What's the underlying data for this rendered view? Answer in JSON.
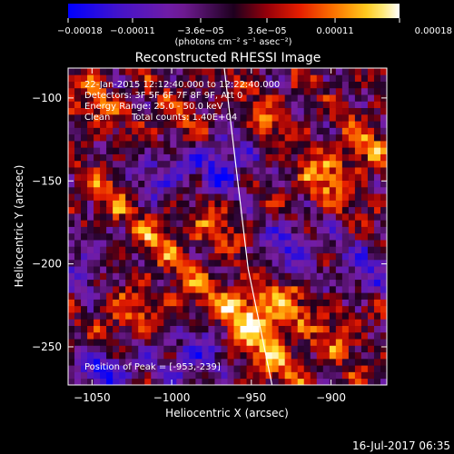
{
  "chart_data": {
    "type": "heatmap",
    "title": "Reconstructed RHESSI Image",
    "xlabel": "Heliocentric X (arcsec)",
    "ylabel": "Heliocentric Y (arcsec)",
    "xlim": [
      -1065,
      -865
    ],
    "ylim": [
      -273,
      -82
    ],
    "x_ticks": [
      {
        "value": -1050,
        "label": "−1050"
      },
      {
        "value": -1000,
        "label": "−1000"
      },
      {
        "value": -950,
        "label": "−950"
      },
      {
        "value": -900,
        "label": "−900"
      }
    ],
    "y_ticks": [
      {
        "value": -100,
        "label": "−100"
      },
      {
        "value": -150,
        "label": "−150"
      },
      {
        "value": -200,
        "label": "−200"
      },
      {
        "value": -250,
        "label": "−250"
      }
    ],
    "colorbar": {
      "min": -0.00018,
      "max": 0.00018,
      "ticks": [
        {
          "value": -0.00018,
          "label": "−0.00018"
        },
        {
          "value": -0.00011,
          "label": "−0.00011"
        },
        {
          "value": -3.6e-05,
          "label": "−3.6e−05"
        },
        {
          "value": 3.6e-05,
          "label": "3.6e−05"
        },
        {
          "value": 0.00011,
          "label": "0.00011"
        },
        {
          "value": 0.00018,
          "label": "0.00018"
        }
      ],
      "unit_label": "(photons cm⁻² s⁻¹ asec⁻²)"
    },
    "annotations": {
      "time_range": "22-Jan-2015 12:12:40.000 to 12:22:40.000",
      "detectors": "Detectors: 3F 5F 6F 7F 8F 9F, Att 0",
      "energy_range": "Energy Range: 25.0 - 50.0 keV",
      "method": "Clean",
      "total_counts": "Total counts: 1.40E+04",
      "peak": "Position of Peak = [-953,-239]"
    },
    "limb_line": [
      {
        "x": -967,
        "y": -82
      },
      {
        "x": -952,
        "y": -203
      },
      {
        "x": -937,
        "y": -273
      }
    ],
    "bright_regions": [
      {
        "x": -948,
        "y": -240,
        "amp": 1.0
      },
      {
        "x": -960,
        "y": -225,
        "amp": 0.85
      },
      {
        "x": -930,
        "y": -222,
        "amp": 0.8
      },
      {
        "x": -905,
        "y": -150,
        "amp": 0.85
      },
      {
        "x": -880,
        "y": -130,
        "amp": 0.7
      },
      {
        "x": -1030,
        "y": -235,
        "amp": 0.75
      },
      {
        "x": -1010,
        "y": -185,
        "amp": 0.65
      },
      {
        "x": -990,
        "y": -215,
        "amp": 0.6
      },
      {
        "x": -1040,
        "y": -160,
        "amp": 0.55
      },
      {
        "x": -975,
        "y": -175,
        "amp": 0.6
      },
      {
        "x": -930,
        "y": -260,
        "amp": 0.7
      },
      {
        "x": -895,
        "y": -240,
        "amp": 0.6
      },
      {
        "x": -1050,
        "y": -105,
        "amp": 0.55
      },
      {
        "x": -1000,
        "y": -115,
        "amp": 0.5
      },
      {
        "x": -940,
        "y": -115,
        "amp": 0.55
      }
    ],
    "dark_regions": [
      {
        "x": -1040,
        "y": -265,
        "amp": 0.9
      },
      {
        "x": -985,
        "y": -255,
        "amp": 0.8
      },
      {
        "x": -965,
        "y": -140,
        "amp": 0.8
      },
      {
        "x": -1005,
        "y": -145,
        "amp": 0.7
      },
      {
        "x": -925,
        "y": -190,
        "amp": 0.7
      },
      {
        "x": -880,
        "y": -205,
        "amp": 0.6
      },
      {
        "x": -1055,
        "y": -200,
        "amp": 0.5
      }
    ]
  },
  "timestamp": "16-Jul-2017 06:35"
}
